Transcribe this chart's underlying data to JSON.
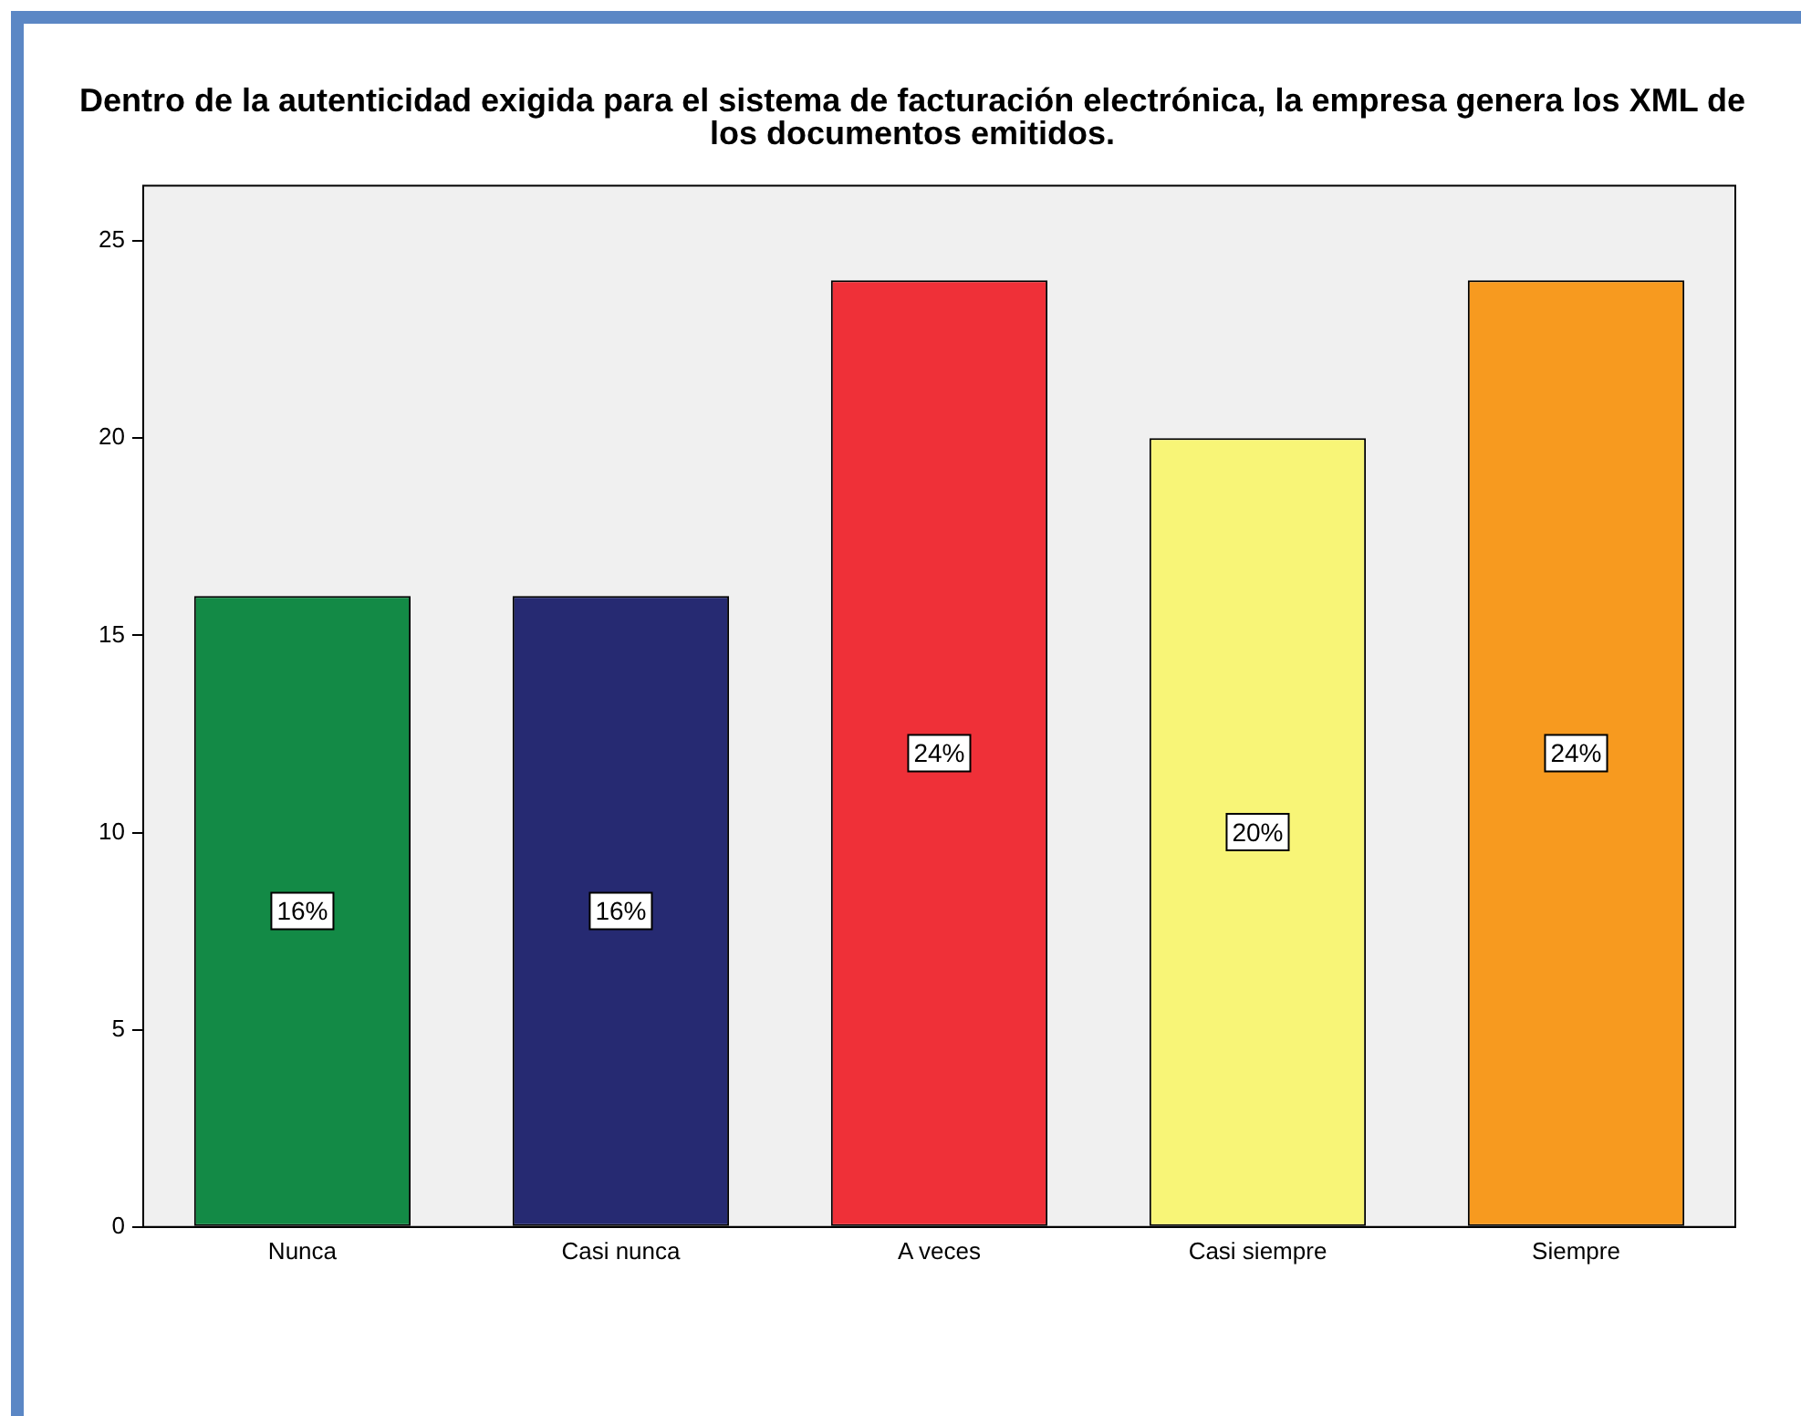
{
  "chart_data": {
    "type": "bar",
    "title": "Dentro de la autenticidad exigida para el sistema de facturación electrónica, la empresa genera los XML de los documentos emitidos.",
    "categories": [
      "Nunca",
      "Casi nunca",
      "A veces",
      "Casi siempre",
      "Siempre"
    ],
    "values": [
      16,
      16,
      24,
      20,
      24
    ],
    "colors": [
      "#138a46",
      "#262a72",
      "#ef3038",
      "#f8f577",
      "#f79a1f"
    ],
    "value_labels": [
      "16%",
      "16%",
      "24%",
      "20%",
      "24%"
    ],
    "ylim": [
      0,
      26.4
    ],
    "yticks": [
      0,
      5,
      10,
      15,
      20,
      25
    ],
    "grid": false,
    "legend": false
  }
}
